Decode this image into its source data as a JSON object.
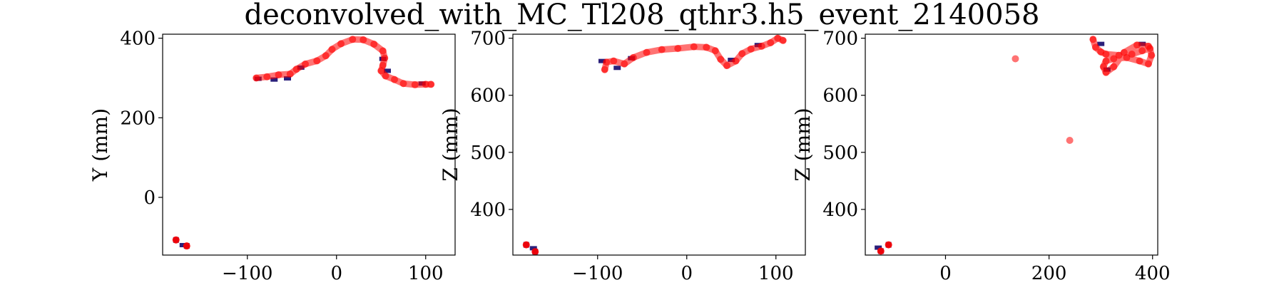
{
  "title": "deconvolved_with_MC_Tl208_qthr3.h5_event_2140058",
  "colors": {
    "track": "#ff0000",
    "voxel_dark": "#2a1f7a",
    "voxel_teal": "#2c8c8c",
    "frame": "#000000"
  },
  "chart_data": [
    {
      "type": "scatter",
      "name": "xy",
      "xlabel": "",
      "ylabel": "Y (mm)",
      "xlim": [
        -195,
        133
      ],
      "ylim": [
        -145,
        410
      ],
      "xticks": [
        -100,
        0,
        100
      ],
      "yticks": [
        0,
        200,
        400
      ],
      "xtick_labels": [
        "−100",
        "0",
        "100"
      ],
      "ytick_labels": [
        "0",
        "200",
        "400"
      ],
      "track": [
        [
          -90,
          300
        ],
        [
          -78,
          303
        ],
        [
          -65,
          308
        ],
        [
          -52,
          310
        ],
        [
          -45,
          322
        ],
        [
          -35,
          335
        ],
        [
          -22,
          343
        ],
        [
          -12,
          356
        ],
        [
          -5,
          372
        ],
        [
          5,
          386
        ],
        [
          18,
          397
        ],
        [
          30,
          396
        ],
        [
          42,
          385
        ],
        [
          52,
          368
        ],
        [
          54,
          350
        ],
        [
          52,
          332
        ],
        [
          50,
          318
        ],
        [
          55,
          305
        ],
        [
          65,
          296
        ],
        [
          75,
          286
        ],
        [
          88,
          283
        ],
        [
          100,
          284
        ],
        [
          106,
          284
        ]
      ],
      "blobs": [
        [
          -180,
          -107
        ],
        [
          -168,
          -122
        ]
      ],
      "voxels": [
        [
          -88,
          298
        ],
        [
          -70,
          296
        ],
        [
          -55,
          299
        ],
        [
          -40,
          326
        ],
        [
          52,
          348
        ],
        [
          57,
          318
        ],
        [
          96,
          286
        ],
        [
          -172,
          -120
        ]
      ]
    },
    {
      "type": "scatter",
      "name": "xz",
      "xlabel": "",
      "ylabel": "Z (mm)",
      "xlim": [
        -195,
        133
      ],
      "ylim": [
        320,
        707
      ],
      "xticks": [
        -100,
        0,
        100
      ],
      "yticks": [
        400,
        500,
        600,
        700
      ],
      "xtick_labels": [
        "−100",
        "0",
        "100"
      ],
      "ytick_labels": [
        "400",
        "500",
        "600",
        "700"
      ],
      "track": [
        [
          -92,
          645
        ],
        [
          -90,
          658
        ],
        [
          -82,
          660
        ],
        [
          -70,
          655
        ],
        [
          -60,
          666
        ],
        [
          -45,
          675
        ],
        [
          -28,
          680
        ],
        [
          -10,
          682
        ],
        [
          8,
          685
        ],
        [
          22,
          684
        ],
        [
          32,
          678
        ],
        [
          38,
          663
        ],
        [
          45,
          652
        ],
        [
          55,
          660
        ],
        [
          62,
          673
        ],
        [
          72,
          681
        ],
        [
          84,
          686
        ],
        [
          94,
          692
        ],
        [
          102,
          700
        ],
        [
          108,
          696
        ]
      ],
      "blobs": [
        [
          -180,
          338
        ],
        [
          -170,
          326
        ]
      ],
      "voxels": [
        [
          -95,
          660
        ],
        [
          -78,
          648
        ],
        [
          -62,
          665
        ],
        [
          50,
          662
        ],
        [
          80,
          688
        ],
        [
          -172,
          332
        ]
      ]
    },
    {
      "type": "scatter",
      "name": "yz",
      "xlabel": "",
      "ylabel": "Z (mm)",
      "xlim": [
        -155,
        410
      ],
      "ylim": [
        320,
        707
      ],
      "xticks": [
        0,
        200,
        400
      ],
      "yticks": [
        400,
        500,
        600,
        700
      ],
      "xtick_labels": [
        "0",
        "200",
        "400"
      ],
      "ytick_labels": [
        "400",
        "500",
        "600",
        "700"
      ],
      "track": [
        [
          285,
          698
        ],
        [
          290,
          684
        ],
        [
          300,
          676
        ],
        [
          310,
          672
        ],
        [
          335,
          670
        ],
        [
          360,
          672
        ],
        [
          380,
          678
        ],
        [
          395,
          682
        ],
        [
          398,
          670
        ],
        [
          392,
          655
        ],
        [
          375,
          660
        ],
        [
          350,
          666
        ],
        [
          325,
          664
        ],
        [
          310,
          660
        ],
        [
          305,
          650
        ],
        [
          310,
          640
        ],
        [
          325,
          650
        ],
        [
          345,
          675
        ],
        [
          370,
          688
        ],
        [
          392,
          686
        ]
      ],
      "blobs": [
        [
          -110,
          338
        ],
        [
          -125,
          327
        ]
      ],
      "outliers": [
        [
          135,
          664
        ],
        [
          240,
          521
        ]
      ],
      "voxels": [
        [
          300,
          690
        ],
        [
          380,
          690
        ],
        [
          312,
          645
        ],
        [
          -130,
          333
        ]
      ]
    }
  ]
}
